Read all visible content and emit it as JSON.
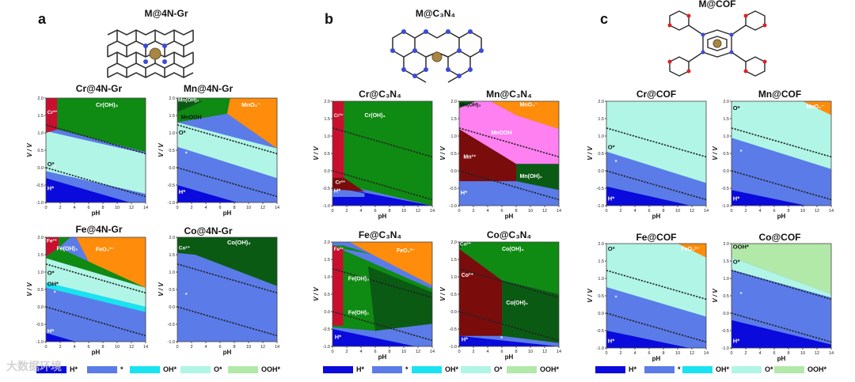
{
  "panels": {
    "a": {
      "letter": "a",
      "structure_title": "M@4N-Gr",
      "subplots": [
        {
          "title": "Cr@4N-Gr",
          "labels": [
            "Cr³⁺",
            "Cr(OH)₃",
            "O*",
            "H*"
          ]
        },
        {
          "title": "Mn@4N-Gr",
          "labels": [
            "Mn(OH)₃",
            "MnOOH",
            "MnO₄⁻",
            "O*",
            "H*"
          ]
        },
        {
          "title": "Fe@4N-Gr",
          "labels": [
            "Fe³⁺",
            "Fe(OH)₃",
            "FeO₄²⁻",
            "O*",
            "OH*",
            "H*"
          ]
        },
        {
          "title": "Co@4N-Gr",
          "labels": [
            "Co²⁺",
            "Co(OH)₂"
          ]
        }
      ]
    },
    "b": {
      "letter": "b",
      "structure_title": "M@C₃N₄",
      "subplots": [
        {
          "title": "Cr@C₃N₄",
          "labels": [
            "Cr³⁺",
            "Cr(OH)₃",
            "Cr²⁺",
            "H*"
          ]
        },
        {
          "title": "Mn@C₃N₄",
          "labels": [
            "Mn(OH)₃",
            "MnO₄⁻",
            "MnOOH",
            "Mn²⁺",
            "Mn(OH)₂",
            "H*"
          ]
        },
        {
          "title": "Fe@C₃N₄",
          "labels": [
            "Fe³⁺",
            "FeO₄²⁻",
            "Fe(OH)₃",
            "Fe(OH)₂",
            "H*"
          ]
        },
        {
          "title": "Co@C₃N₄",
          "labels": [
            "Co³⁺",
            "Co(OH)₃",
            "Co²⁺",
            "Co(OH)₂",
            "H*"
          ]
        }
      ]
    },
    "c": {
      "letter": "c",
      "structure_title": "M@COF",
      "subplots": [
        {
          "title": "Cr@COF",
          "labels": [
            "O*",
            "H*"
          ]
        },
        {
          "title": "Mn@COF",
          "labels": [
            "O*",
            "MnO₄⁻",
            "H*"
          ]
        },
        {
          "title": "Fe@COF",
          "labels": [
            "O*",
            "FeO₄²⁻",
            "H*"
          ]
        },
        {
          "title": "Co@COF",
          "labels": [
            "OOH*",
            "O*",
            "H*"
          ]
        }
      ]
    }
  },
  "axes": {
    "xlabel": "pH",
    "ylabel": "V / V",
    "xticks": [
      "0",
      "2",
      "4",
      "6",
      "8",
      "10",
      "12",
      "14"
    ],
    "yticks": [
      "2.0",
      "1.5",
      "1.0",
      "0.5",
      "0.0",
      "-0.5",
      "-1.0"
    ],
    "xlim": [
      0,
      14
    ],
    "ylim": [
      -1.0,
      2.0
    ]
  },
  "legend": {
    "items": [
      {
        "label": "H*",
        "color": "#0a0adc"
      },
      {
        "label": "*",
        "color": "#5b7be8"
      },
      {
        "label": "OH*",
        "color": "#19e3f0"
      },
      {
        "label": "O*",
        "color": "#b0f5e6"
      },
      {
        "label": "OOH*",
        "color": "#b2e8a8"
      }
    ]
  },
  "watermark": "大数据环境",
  "colors": {
    "red": "#c8102e",
    "darkred": "#7a0c0c",
    "green": "#0f8a12",
    "darkgreen": "#0a5a14",
    "orange": "#ff8c0a",
    "pink": "#ff80f0",
    "aqua": "#b0f5e6",
    "blue": "#5b7be8",
    "navy": "#0a0adc",
    "cyan": "#19e3f0",
    "lightgreen": "#b2e8a8"
  }
}
